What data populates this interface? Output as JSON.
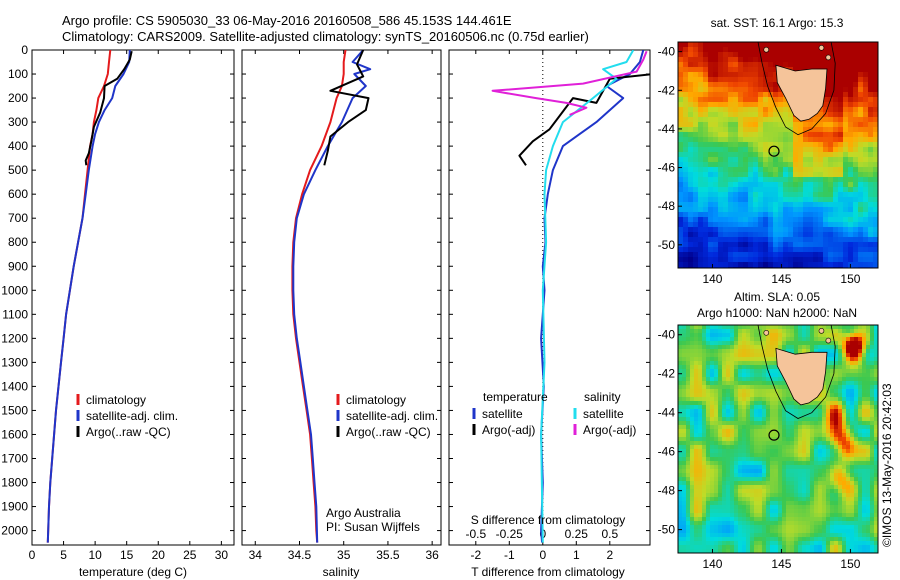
{
  "header": {
    "line1": "Argo profile: CS 5905030_33 06-May-2016 20160508_586 45.153S 144.461E",
    "line2": "Climatology: CARS2009. Satellite-adjusted climatology: synTS_20160506.nc (0.75d earlier)"
  },
  "side_label": "©IMOS 13-May-2016 20:42:03",
  "colors": {
    "climatology": "#e41a1c",
    "satellite": "#1f35c9",
    "argo": "#000000",
    "sat_salinity": "#22ddee",
    "argo_salinity": "#e020d8",
    "land": "#f5c49a"
  },
  "chart_data": [
    {
      "id": "temperature",
      "type": "line",
      "xlabel": "temperature (deg C)",
      "ylabel": "",
      "xlim": [
        0,
        32
      ],
      "ylim": [
        2060,
        0
      ],
      "xticks": [
        0,
        5,
        10,
        15,
        20,
        25,
        30
      ],
      "yticks": [
        0,
        100,
        200,
        300,
        400,
        500,
        600,
        700,
        800,
        900,
        1000,
        1100,
        1200,
        1300,
        1400,
        1500,
        1600,
        1700,
        1800,
        1900,
        2000
      ],
      "legend": [
        "climatology",
        "satellite-adj. clim.",
        "Argo(..raw -QC)"
      ],
      "series": [
        {
          "name": "climatology",
          "color": "#e41a1c",
          "x": [
            12.4,
            12.2,
            12.0,
            11.4,
            10.5,
            10.2,
            9.8,
            9.6,
            9.2,
            8.8,
            8.4,
            8.0,
            7.3,
            6.6,
            6.0,
            5.4,
            5.0,
            4.6,
            4.2,
            3.8,
            3.5,
            3.2,
            2.9,
            2.7,
            2.5
          ],
          "y": [
            0,
            50,
            100,
            150,
            200,
            250,
            300,
            350,
            400,
            500,
            600,
            700,
            800,
            900,
            1000,
            1100,
            1200,
            1300,
            1400,
            1500,
            1600,
            1700,
            1800,
            1900,
            2050
          ]
        },
        {
          "name": "satellite-adj. clim.",
          "color": "#1f35c9",
          "x": [
            15.5,
            15.4,
            14.5,
            13.2,
            12.7,
            11.5,
            10.6,
            10.0,
            9.6,
            9.0,
            8.5,
            8.0,
            7.3,
            6.6,
            6.0,
            5.4,
            5.0,
            4.6,
            4.2,
            3.8,
            3.5,
            3.2,
            2.9,
            2.7,
            2.5
          ],
          "y": [
            0,
            50,
            100,
            150,
            200,
            250,
            300,
            350,
            400,
            500,
            600,
            700,
            800,
            900,
            1000,
            1100,
            1200,
            1300,
            1400,
            1500,
            1600,
            1700,
            1800,
            1900,
            2050
          ]
        },
        {
          "name": "Argo(..raw -QC)",
          "color": "#000000",
          "x": [
            15.8,
            15.5,
            14.6,
            13.5,
            11.5,
            11.4,
            10.8,
            9.8,
            9.4,
            9.0,
            8.5,
            8.6
          ],
          "y": [
            5,
            40,
            80,
            120,
            150,
            200,
            260,
            320,
            380,
            430,
            460,
            480
          ]
        }
      ]
    },
    {
      "id": "salinity",
      "type": "line",
      "xlabel": "salinity",
      "ylabel": "",
      "xlim": [
        33.85,
        36.1
      ],
      "ylim": [
        2060,
        0
      ],
      "xticks": [
        34,
        34.5,
        35,
        35.5,
        36
      ],
      "legend": [
        "climatology",
        "satellite-adj. clim.",
        "Argo(..raw -QC)"
      ],
      "annotations": [
        "Argo Australia",
        "PI: Susan Wijffels"
      ],
      "series": [
        {
          "name": "climatology",
          "color": "#e41a1c",
          "x": [
            35.02,
            35.0,
            35.0,
            34.98,
            34.92,
            34.85,
            34.75,
            34.62,
            34.53,
            34.46,
            34.43,
            34.42,
            34.42,
            34.43,
            34.46,
            34.5,
            34.54,
            34.58,
            34.62,
            34.64,
            34.66,
            34.68,
            34.69,
            34.7
          ],
          "y": [
            0,
            50,
            100,
            150,
            200,
            300,
            400,
            500,
            600,
            700,
            800,
            900,
            1000,
            1100,
            1200,
            1300,
            1400,
            1500,
            1600,
            1700,
            1800,
            1900,
            2000,
            2050
          ]
        },
        {
          "name": "satellite-adj. clim.",
          "color": "#1f35c9",
          "x": [
            35.22,
            35.1,
            35.3,
            35.12,
            35.25,
            35.1,
            34.98,
            34.82,
            34.68,
            34.55,
            34.47,
            34.44,
            34.43,
            34.43,
            34.44,
            34.47,
            34.51,
            34.55,
            34.59,
            34.63,
            34.65,
            34.67,
            34.69,
            34.7
          ],
          "y": [
            0,
            50,
            80,
            100,
            150,
            200,
            300,
            400,
            500,
            600,
            700,
            800,
            900,
            1000,
            1100,
            1200,
            1300,
            1400,
            1500,
            1600,
            1700,
            1800,
            1900,
            2050
          ]
        },
        {
          "name": "Argo(..raw -QC)",
          "color": "#000000",
          "x": [
            35.22,
            35.15,
            35.22,
            34.85,
            35.28,
            35.25,
            35.05,
            34.85,
            34.82,
            34.78
          ],
          "y": [
            0,
            60,
            110,
            170,
            200,
            250,
            300,
            360,
            420,
            480
          ]
        }
      ]
    },
    {
      "id": "differences",
      "type": "line",
      "xlabel": "T difference from climatology",
      "x2label": "S difference from climatology",
      "xlim": [
        -2.8,
        3.2
      ],
      "ylim": [
        2060,
        0
      ],
      "xticks": [
        -2,
        -1,
        0,
        1,
        2
      ],
      "x2ticks": [
        "-0.5",
        "-0.25",
        "0",
        "0.25",
        "0.5"
      ],
      "legend": [
        "temperature",
        "satellite",
        "Argo(-adj)",
        "salinity",
        "satellite",
        "Argo(-adj)"
      ],
      "series": [
        {
          "name": "satellite",
          "color": "#1f35c9",
          "x": [
            3.0,
            2.9,
            2.6,
            1.9,
            2.4,
            2.0,
            1.6,
            1.1,
            0.6,
            0.3,
            0.15,
            0.05,
            0.08,
            0.0,
            0.05,
            -0.05,
            0.03,
            -0.05,
            0.0,
            -0.05,
            -0.02
          ],
          "y": [
            0,
            50,
            100,
            150,
            200,
            250,
            300,
            350,
            400,
            500,
            600,
            700,
            800,
            900,
            1000,
            1200,
            1400,
            1600,
            1800,
            2000,
            2050
          ]
        },
        {
          "name": "Argo(-adj)",
          "color": "#000000",
          "x": [
            3.3,
            3.3,
            2.0,
            1.6,
            0.9,
            0.2,
            -0.3,
            -0.7,
            -0.5
          ],
          "y": [
            0,
            100,
            120,
            220,
            200,
            330,
            380,
            440,
            480
          ]
        },
        {
          "name": "satellite",
          "color": "#22ddee",
          "x": [
            2.7,
            2.5,
            1.8,
            2.2,
            1.5,
            0.6,
            0.3,
            0.1,
            0.05,
            0.1,
            0.0,
            0.05,
            -0.05,
            0.0
          ],
          "y": [
            0,
            50,
            80,
            120,
            200,
            300,
            400,
            500,
            600,
            800,
            1000,
            1300,
            1600,
            2050
          ]
        },
        {
          "name": "Argo(-adj)",
          "color": "#e020d8",
          "x": [
            3.1,
            3.0,
            2.8,
            1.2,
            -1.5,
            -0.2,
            0.7,
            1.3,
            0.8
          ],
          "y": [
            5,
            40,
            90,
            140,
            170,
            200,
            220,
            240,
            270
          ]
        }
      ]
    },
    {
      "id": "sst-map",
      "type": "heatmap",
      "title": "sat. SST: 16.1 Argo: 15.3",
      "xticks": [
        "140",
        "145",
        "150"
      ],
      "yticks": [
        "-40",
        "-42",
        "-44",
        "-46",
        "-48",
        "-50"
      ],
      "xlim": [
        137.5,
        152
      ],
      "ylim": [
        -51.2,
        -39.5
      ],
      "float_position": {
        "lon": 144.461,
        "lat": -45.153
      }
    },
    {
      "id": "sla-map",
      "type": "heatmap",
      "title": "Altim. SLA: 0.05",
      "subtitle": "Argo h1000: NaN h2000: NaN",
      "xticks": [
        "140",
        "145",
        "150"
      ],
      "yticks": [
        "-40",
        "-42",
        "-44",
        "-46",
        "-48",
        "-50"
      ],
      "xlim": [
        137.5,
        152
      ],
      "ylim": [
        -51.2,
        -39.5
      ],
      "float_position": {
        "lon": 144.461,
        "lat": -45.153
      }
    }
  ]
}
